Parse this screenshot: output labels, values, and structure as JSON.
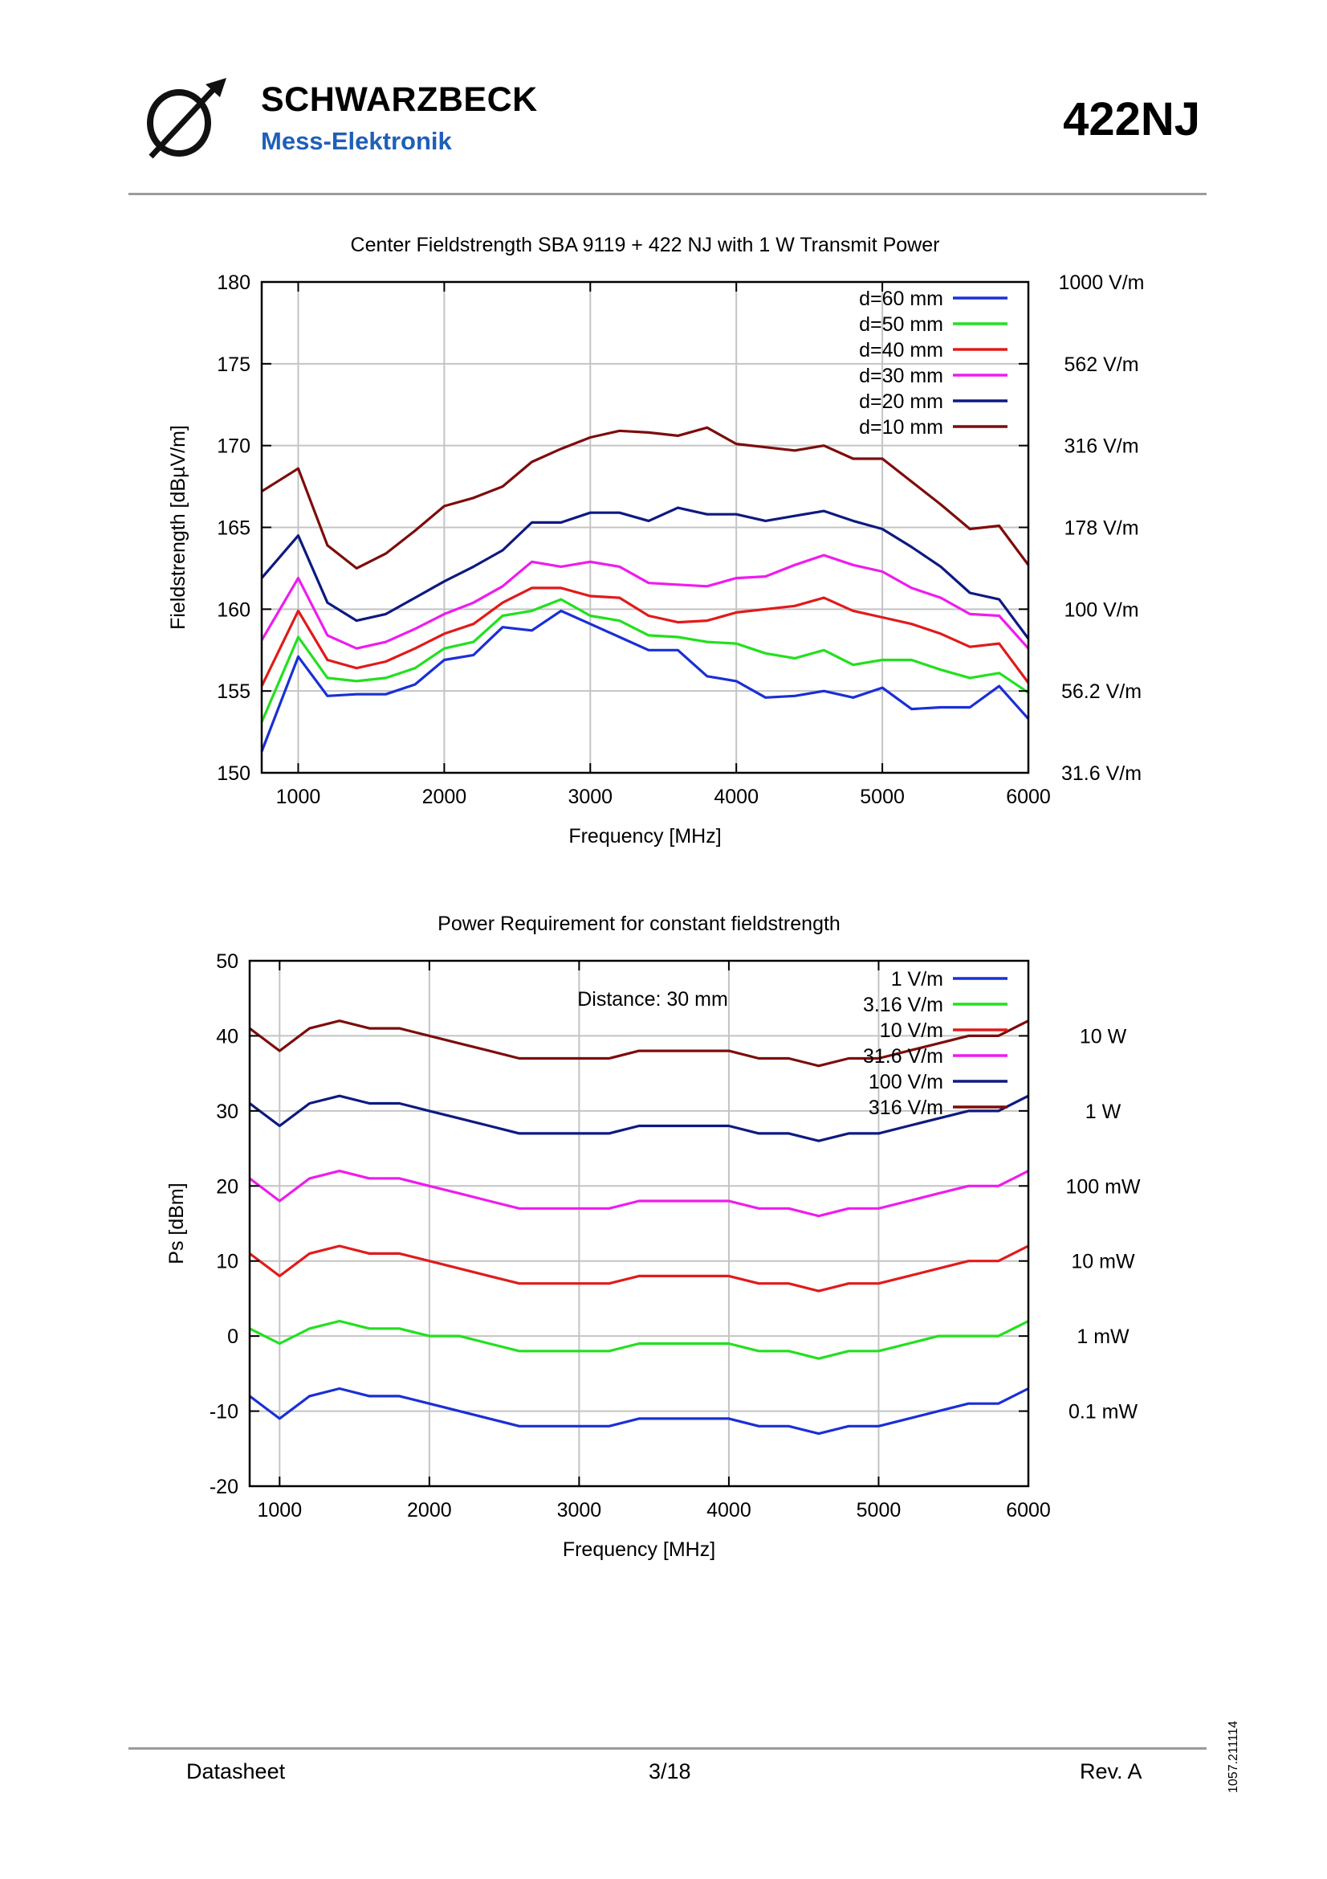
{
  "header": {
    "brand_name": "SCHWARZBECK",
    "brand_sub": "Mess-Elektronik",
    "doc_id": "422NJ"
  },
  "footer": {
    "left": "Datasheet",
    "center": "3/18",
    "right": "Rev. A",
    "side_code": "1057.211114"
  },
  "colors": {
    "blue": "#1a2fd6",
    "green": "#22e01f",
    "red": "#e01b1b",
    "magenta": "#ee1cee",
    "navy": "#0d1a80",
    "maroon": "#7d0c0c"
  },
  "chart_data": [
    {
      "type": "line",
      "title": "Center Fieldstrength SBA 9119 + 422 NJ with 1 W Transmit Power",
      "xlabel": "Frequency [MHz]",
      "ylabel": "Fieldstrength [dBµV/m]",
      "xlim": [
        750,
        6000
      ],
      "ylim": [
        150,
        180
      ],
      "xticks": [
        1000,
        2000,
        3000,
        4000,
        5000,
        6000
      ],
      "yticks": [
        150,
        155,
        160,
        165,
        170,
        175,
        180
      ],
      "grid": true,
      "legend_position": "top-right",
      "right_axis_labels": [
        {
          "y": 180,
          "label": "1000 V/m"
        },
        {
          "y": 175,
          "label": "562 V/m"
        },
        {
          "y": 170,
          "label": "316 V/m"
        },
        {
          "y": 165,
          "label": "178 V/m"
        },
        {
          "y": 160,
          "label": "100 V/m"
        },
        {
          "y": 155,
          "label": "56.2 V/m"
        },
        {
          "y": 150,
          "label": "31.6 V/m"
        }
      ],
      "x": [
        750,
        1000,
        1200,
        1400,
        1600,
        1800,
        2000,
        2200,
        2400,
        2600,
        2800,
        3000,
        3200,
        3400,
        3600,
        3800,
        4000,
        4200,
        4400,
        4600,
        4800,
        5000,
        5200,
        5400,
        5600,
        5800,
        6000
      ],
      "series": [
        {
          "name": "d=60 mm",
          "color": "#1a2fd6",
          "values": [
            151.3,
            157.1,
            154.7,
            154.8,
            154.8,
            155.4,
            156.9,
            157.2,
            158.9,
            158.7,
            159.9,
            159.1,
            158.3,
            157.5,
            157.5,
            155.9,
            155.6,
            154.6,
            154.7,
            155.0,
            154.6,
            155.2,
            153.9,
            154.0,
            154.0,
            155.3,
            153.3
          ]
        },
        {
          "name": "d=50 mm",
          "color": "#22e01f",
          "values": [
            153.1,
            158.3,
            155.8,
            155.6,
            155.8,
            156.4,
            157.6,
            158.0,
            159.6,
            159.9,
            160.6,
            159.6,
            159.3,
            158.4,
            158.3,
            158.0,
            157.9,
            157.3,
            157.0,
            157.5,
            156.6,
            156.9,
            156.9,
            156.3,
            155.8,
            156.1,
            154.9
          ]
        },
        {
          "name": "d=40 mm",
          "color": "#e01b1b",
          "values": [
            155.3,
            159.9,
            156.9,
            156.4,
            156.8,
            157.6,
            158.5,
            159.1,
            160.4,
            161.3,
            161.3,
            160.8,
            160.7,
            159.6,
            159.2,
            159.3,
            159.8,
            160.0,
            160.2,
            160.7,
            159.9,
            159.5,
            159.1,
            158.5,
            157.7,
            157.9,
            155.5
          ]
        },
        {
          "name": "d=30 mm",
          "color": "#ee1cee",
          "values": [
            158.1,
            161.9,
            158.4,
            157.6,
            158.0,
            158.8,
            159.7,
            160.4,
            161.4,
            162.9,
            162.6,
            162.9,
            162.6,
            161.6,
            161.5,
            161.4,
            161.9,
            162.0,
            162.7,
            163.3,
            162.7,
            162.3,
            161.3,
            160.7,
            159.7,
            159.6,
            157.6
          ]
        },
        {
          "name": "d=20 mm",
          "color": "#0d1a80",
          "values": [
            161.9,
            164.5,
            160.4,
            159.3,
            159.7,
            160.7,
            161.7,
            162.6,
            163.6,
            165.3,
            165.3,
            165.9,
            165.9,
            165.4,
            166.2,
            165.8,
            165.8,
            165.4,
            165.7,
            166.0,
            165.4,
            164.9,
            163.8,
            162.6,
            161.0,
            160.6,
            158.2
          ]
        },
        {
          "name": "d=10 mm",
          "color": "#7d0c0c",
          "values": [
            167.2,
            168.6,
            163.9,
            162.5,
            163.4,
            164.8,
            166.3,
            166.8,
            167.5,
            169.0,
            169.8,
            170.5,
            170.9,
            170.8,
            170.6,
            171.1,
            170.1,
            169.9,
            169.7,
            170.0,
            169.2,
            169.2,
            167.8,
            166.4,
            164.9,
            165.1,
            162.7
          ]
        }
      ]
    },
    {
      "type": "line",
      "title": "Power Requirement for constant fieldstrength",
      "annotation": "Distance: 30 mm",
      "xlabel": "Frequency [MHz]",
      "ylabel": "Ps [dBm]",
      "xlim": [
        800,
        6000
      ],
      "ylim": [
        -20,
        50
      ],
      "xticks": [
        1000,
        2000,
        3000,
        4000,
        5000,
        6000
      ],
      "yticks": [
        -20,
        -10,
        0,
        10,
        20,
        30,
        40,
        50
      ],
      "grid": true,
      "legend_position": "top-right",
      "right_axis_labels": [
        {
          "y": 40,
          "label": "10 W"
        },
        {
          "y": 30,
          "label": "1 W"
        },
        {
          "y": 20,
          "label": "100 mW"
        },
        {
          "y": 10,
          "label": "10 mW"
        },
        {
          "y": 0,
          "label": "1 mW"
        },
        {
          "y": -10,
          "label": "0.1 mW"
        }
      ],
      "x": [
        800,
        1000,
        1200,
        1400,
        1600,
        1800,
        2000,
        2200,
        2400,
        2600,
        2800,
        3000,
        3200,
        3400,
        3600,
        3800,
        4000,
        4200,
        4400,
        4600,
        4800,
        5000,
        5200,
        5400,
        5600,
        5800,
        6000
      ],
      "series": [
        {
          "name": "1 V/m",
          "color": "#1a2fd6",
          "values": [
            -8,
            -11,
            -8,
            -7,
            -8,
            -8,
            -9,
            -10,
            -11,
            -12,
            -12,
            -12,
            -12,
            -11,
            -11,
            -11,
            -11,
            -12,
            -12,
            -13,
            -12,
            -12,
            -11,
            -10,
            -9,
            -9,
            -7
          ]
        },
        {
          "name": "3.16 V/m",
          "color": "#22e01f",
          "values": [
            1,
            -1,
            1,
            2,
            1,
            1,
            0,
            0,
            -1,
            -2,
            -2,
            -2,
            -2,
            -1,
            -1,
            -1,
            -1,
            -2,
            -2,
            -3,
            -2,
            -2,
            -1,
            0,
            0,
            0,
            2
          ]
        },
        {
          "name": "10 V/m",
          "color": "#e01b1b",
          "values": [
            11,
            8,
            11,
            12,
            11,
            11,
            10,
            9,
            8,
            7,
            7,
            7,
            7,
            8,
            8,
            8,
            8,
            7,
            7,
            6,
            7,
            7,
            8,
            9,
            10,
            10,
            12
          ]
        },
        {
          "name": "31.6 V/m",
          "color": "#ee1cee",
          "values": [
            21,
            18,
            21,
            22,
            21,
            21,
            20,
            19,
            18,
            17,
            17,
            17,
            17,
            18,
            18,
            18,
            18,
            17,
            17,
            16,
            17,
            17,
            18,
            19,
            20,
            20,
            22
          ]
        },
        {
          "name": "100 V/m",
          "color": "#0d1a80",
          "values": [
            31,
            28,
            31,
            32,
            31,
            31,
            30,
            29,
            28,
            27,
            27,
            27,
            27,
            28,
            28,
            28,
            28,
            27,
            27,
            26,
            27,
            27,
            28,
            29,
            30,
            30,
            32
          ]
        },
        {
          "name": "316 V/m",
          "color": "#7d0c0c",
          "values": [
            41,
            38,
            41,
            42,
            41,
            41,
            40,
            39,
            38,
            37,
            37,
            37,
            37,
            38,
            38,
            38,
            38,
            37,
            37,
            36,
            37,
            37,
            38,
            39,
            40,
            40,
            42
          ]
        }
      ]
    }
  ]
}
